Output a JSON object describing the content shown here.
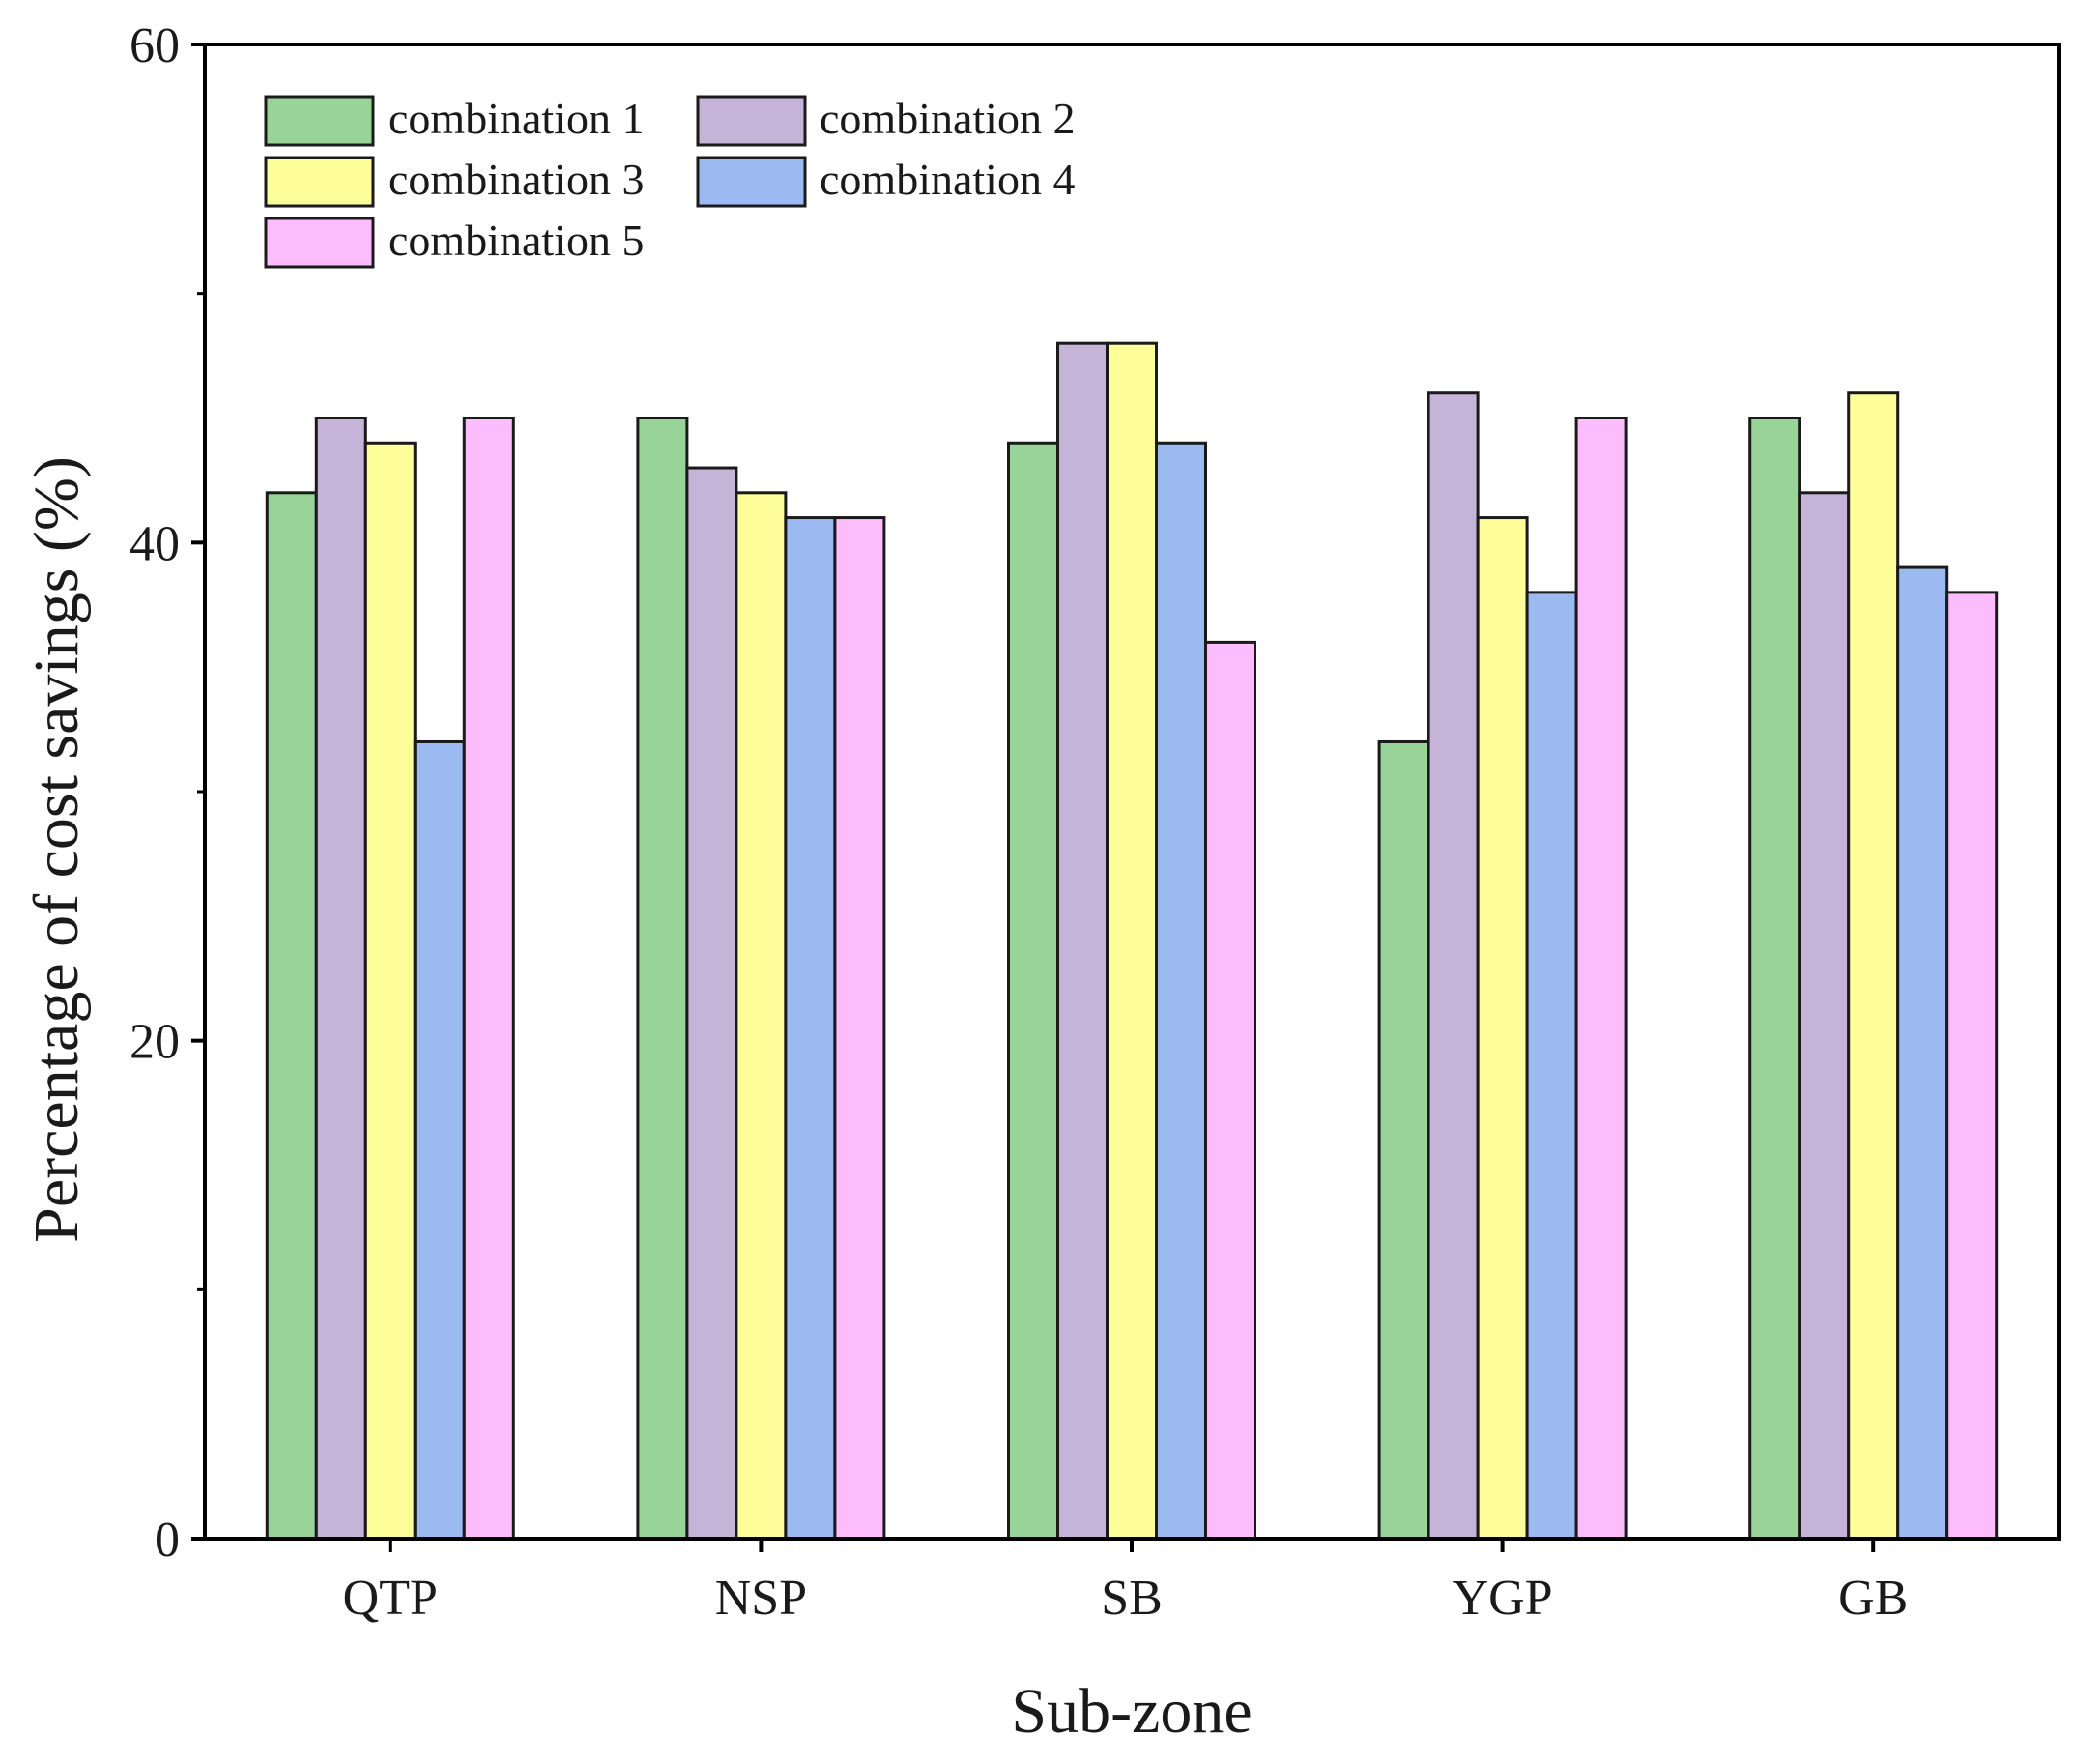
{
  "chart_data": {
    "type": "bar",
    "title": "",
    "xlabel": "Sub-zone",
    "ylabel": "Percentage of cost savings (%)",
    "categories": [
      "QTP",
      "NSP",
      "SB",
      "YGP",
      "GB"
    ],
    "ylim": [
      0,
      60
    ],
    "yticks": [
      0,
      20,
      40,
      60
    ],
    "grid": false,
    "legend_position": "top-left",
    "series": [
      {
        "name": "combination 1",
        "color": "#98d498",
        "values": [
          42,
          45,
          44,
          32,
          45
        ]
      },
      {
        "name": "combination 2",
        "color": "#c5b3d8",
        "values": [
          45,
          43,
          48,
          46,
          42
        ]
      },
      {
        "name": "combination 3",
        "color": "#fdfd99",
        "values": [
          44,
          42,
          48,
          41,
          46
        ]
      },
      {
        "name": "combination 4",
        "color": "#9cbaf2",
        "values": [
          32,
          41,
          44,
          38,
          39
        ]
      },
      {
        "name": "combination 5",
        "color": "#fdbcfb",
        "values": [
          45,
          41,
          36,
          45,
          38
        ]
      }
    ]
  }
}
